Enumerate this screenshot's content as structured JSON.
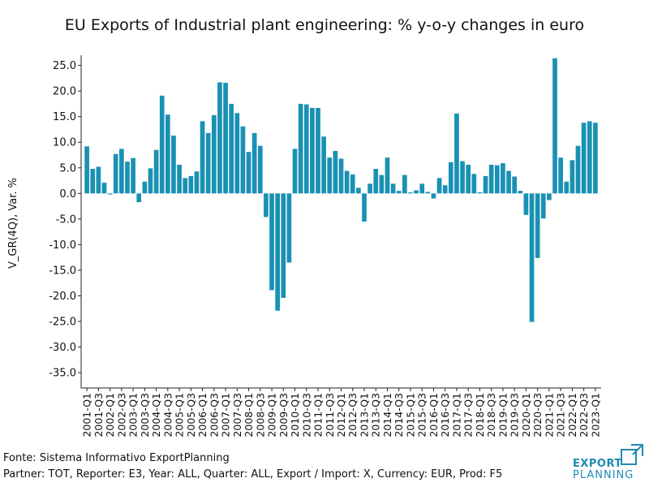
{
  "chart_data": {
    "type": "bar",
    "title": "EU Exports of Industrial plant engineering: % y-o-y changes in euro",
    "ylabel": "V_GR(4Q), Var. %",
    "xlabel": "",
    "ylim": [
      -38,
      27
    ],
    "yticks": [
      25.0,
      20.0,
      15.0,
      10.0,
      5.0,
      0.0,
      -5.0,
      -10.0,
      -15.0,
      -20.0,
      -25.0,
      -30.0,
      -35.0
    ],
    "ytick_labels": [
      "25.0",
      "20.0",
      "15.0",
      "10.0",
      "5.0",
      "0.0",
      "-5.0",
      "-10.0",
      "-15.0",
      "-20.0",
      "-25.0",
      "-30.0",
      "-35.0"
    ],
    "x_tick_labels": [
      "2001-Q1",
      "2001-Q3",
      "2002-Q1",
      "2002-Q3",
      "2003-Q1",
      "2003-Q3",
      "2004-Q1",
      "2004-Q3",
      "2005-Q1",
      "2005-Q3",
      "2006-Q1",
      "2006-Q3",
      "2007-Q1",
      "2007-Q3",
      "2008-Q1",
      "2008-Q3",
      "2009-Q1",
      "2009-Q3",
      "2010-Q1",
      "2010-Q3",
      "2011-Q1",
      "2011-Q3",
      "2012-Q1",
      "2012-Q3",
      "2013-Q1",
      "2013-Q3",
      "2014-Q1",
      "2014-Q3",
      "2015-Q1",
      "2015-Q3",
      "2016-Q1",
      "2016-Q3",
      "2017-Q1",
      "2017-Q3",
      "2018-Q1",
      "2018-Q3",
      "2019-Q1",
      "2019-Q3",
      "2020-Q1",
      "2020-Q3",
      "2021-Q1",
      "2021-Q3",
      "2022-Q1",
      "2022-Q3",
      "2023-Q1"
    ],
    "categories": [
      "2001-Q1",
      "2001-Q2",
      "2001-Q3",
      "2001-Q4",
      "2002-Q1",
      "2002-Q2",
      "2002-Q3",
      "2002-Q4",
      "2003-Q1",
      "2003-Q2",
      "2003-Q3",
      "2003-Q4",
      "2004-Q1",
      "2004-Q2",
      "2004-Q3",
      "2004-Q4",
      "2005-Q1",
      "2005-Q2",
      "2005-Q3",
      "2005-Q4",
      "2006-Q1",
      "2006-Q2",
      "2006-Q3",
      "2006-Q4",
      "2007-Q1",
      "2007-Q2",
      "2007-Q3",
      "2007-Q4",
      "2008-Q1",
      "2008-Q2",
      "2008-Q3",
      "2008-Q4",
      "2009-Q1",
      "2009-Q2",
      "2009-Q3",
      "2009-Q4",
      "2010-Q1",
      "2010-Q2",
      "2010-Q3",
      "2010-Q4",
      "2011-Q1",
      "2011-Q2",
      "2011-Q3",
      "2011-Q4",
      "2012-Q1",
      "2012-Q2",
      "2012-Q3",
      "2012-Q4",
      "2013-Q1",
      "2013-Q2",
      "2013-Q3",
      "2013-Q4",
      "2014-Q1",
      "2014-Q2",
      "2014-Q3",
      "2014-Q4",
      "2015-Q1",
      "2015-Q2",
      "2015-Q3",
      "2015-Q4",
      "2016-Q1",
      "2016-Q2",
      "2016-Q3",
      "2016-Q4",
      "2017-Q1",
      "2017-Q2",
      "2017-Q3",
      "2017-Q4",
      "2018-Q1",
      "2018-Q2",
      "2018-Q3",
      "2018-Q4",
      "2019-Q1",
      "2019-Q2",
      "2019-Q3",
      "2019-Q4",
      "2020-Q1",
      "2020-Q2",
      "2020-Q3",
      "2020-Q4",
      "2021-Q1",
      "2021-Q2",
      "2021-Q3",
      "2021-Q4",
      "2022-Q1",
      "2022-Q2",
      "2022-Q3",
      "2022-Q4",
      "2023-Q1"
    ],
    "values": [
      9.2,
      4.8,
      5.2,
      2.1,
      -0.2,
      7.7,
      8.7,
      6.2,
      6.9,
      -1.7,
      2.3,
      4.9,
      8.5,
      19.1,
      15.4,
      11.3,
      5.6,
      3.0,
      3.4,
      4.3,
      14.1,
      11.8,
      15.3,
      21.7,
      21.6,
      17.5,
      15.7,
      13.1,
      8.1,
      11.8,
      9.3,
      -4.6,
      -18.9,
      -22.9,
      -20.4,
      -13.5,
      8.7,
      17.5,
      17.4,
      16.7,
      16.7,
      11.1,
      7.0,
      8.3,
      6.8,
      4.4,
      3.7,
      1.1,
      -5.5,
      1.9,
      4.8,
      3.6,
      7.0,
      1.9,
      0.5,
      3.6,
      0.2,
      0.6,
      1.9,
      0.3,
      -1.0,
      3.0,
      1.6,
      6.1,
      15.6,
      6.3,
      5.6,
      3.8,
      0.2,
      3.4,
      5.6,
      5.5,
      5.9,
      4.4,
      3.3,
      0.5,
      -4.2,
      -25.1,
      -12.6,
      -4.9,
      -1.3,
      26.4,
      7.0,
      2.3,
      6.5,
      9.3,
      13.8,
      14.1,
      13.8
    ],
    "bar_color": "#1a91b4",
    "grid": false,
    "legend": "none"
  },
  "footer": {
    "source": "Fonte: Sistema Informativo ExportPlanning",
    "params": "Partner: TOT, Reporter: E3, Year: ALL, Quarter: ALL, Export / Import: X, Currency: EUR, Prod: F5"
  },
  "logo": {
    "line1": "EXPORT",
    "line2": "PLANNING",
    "color": "#1f8ab0"
  }
}
